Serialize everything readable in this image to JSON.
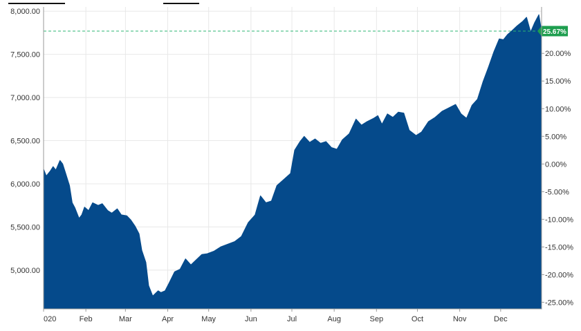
{
  "chart_data": {
    "type": "area",
    "title": "",
    "xlabel": "",
    "ylabel": "",
    "ylim": [
      4550,
      8050
    ],
    "y_right_ylim_pct": [
      -26.2,
      28.4
    ],
    "grid": true,
    "colors": {
      "area": "#054a8b",
      "reference_line": "#2bb673",
      "badge": "#1e9e4f",
      "axis_text": "#333333",
      "grid": "#e8e8e8"
    },
    "y_ticks": [
      {
        "value": 5000,
        "label": "5,000.00"
      },
      {
        "value": 5500,
        "label": "5,500.00"
      },
      {
        "value": 6000,
        "label": "6,000.00"
      },
      {
        "value": 6500,
        "label": "6,500.00"
      },
      {
        "value": 7000,
        "label": "7,000.00"
      },
      {
        "value": 7500,
        "label": "7,500.00"
      },
      {
        "value": 8000,
        "label": "8,000.00"
      }
    ],
    "y_right_ticks": [
      {
        "pct": -25,
        "label": "-25.00%"
      },
      {
        "pct": -20,
        "label": "-20.00%"
      },
      {
        "pct": -15,
        "label": "-15.00%"
      },
      {
        "pct": -10,
        "label": "-10.00%"
      },
      {
        "pct": -5,
        "label": "-5.00%"
      },
      {
        "pct": 0,
        "label": "0.00%"
      },
      {
        "pct": 5,
        "label": "5.00%"
      },
      {
        "pct": 10,
        "label": "10.00%"
      },
      {
        "pct": 15,
        "label": "15.00%"
      },
      {
        "pct": 20,
        "label": "20.00%"
      }
    ],
    "x_ticks": [
      {
        "day": 0,
        "label": "020"
      },
      {
        "day": 31,
        "label": "Feb"
      },
      {
        "day": 60,
        "label": "Mar"
      },
      {
        "day": 91,
        "label": "Apr"
      },
      {
        "day": 121,
        "label": "May"
      },
      {
        "day": 152,
        "label": "Jun"
      },
      {
        "day": 182,
        "label": "Jul"
      },
      {
        "day": 213,
        "label": "Aug"
      },
      {
        "day": 244,
        "label": "Sep"
      },
      {
        "day": 274,
        "label": "Oct"
      },
      {
        "day": 305,
        "label": "Nov"
      },
      {
        "day": 335,
        "label": "Dec"
      }
    ],
    "reference_line": {
      "value": 7770,
      "badge_label": "25.67%"
    },
    "series": [
      {
        "x": [
          "2020-01-01",
          "2020-01-03",
          "2020-01-06",
          "2020-01-08",
          "2020-01-10",
          "2020-01-13",
          "2020-01-15",
          "2020-01-17",
          "2020-01-20",
          "2020-01-22",
          "2020-01-24",
          "2020-01-27",
          "2020-01-29",
          "2020-01-31",
          "2020-02-03",
          "2020-02-06",
          "2020-02-10",
          "2020-02-13",
          "2020-02-17",
          "2020-02-20",
          "2020-02-24",
          "2020-02-27",
          "2020-03-02",
          "2020-03-05",
          "2020-03-08",
          "2020-03-11",
          "2020-03-13",
          "2020-03-16",
          "2020-03-18",
          "2020-03-21",
          "2020-03-23",
          "2020-03-25",
          "2020-03-27",
          "2020-03-30",
          "2020-04-02",
          "2020-04-06",
          "2020-04-10",
          "2020-04-14",
          "2020-04-18",
          "2020-04-22",
          "2020-04-26",
          "2020-04-30",
          "2020-05-05",
          "2020-05-10",
          "2020-05-15",
          "2020-05-20",
          "2020-05-25",
          "2020-05-30",
          "2020-06-04",
          "2020-06-08",
          "2020-06-12",
          "2020-06-16",
          "2020-06-20",
          "2020-06-25",
          "2020-06-30",
          "2020-07-03",
          "2020-07-07",
          "2020-07-10",
          "2020-07-14",
          "2020-07-18",
          "2020-07-22",
          "2020-07-26",
          "2020-07-30",
          "2020-08-03",
          "2020-08-07",
          "2020-08-12",
          "2020-08-17",
          "2020-08-21",
          "2020-08-25",
          "2020-08-30",
          "2020-09-02",
          "2020-09-05",
          "2020-09-09",
          "2020-09-13",
          "2020-09-17",
          "2020-09-21",
          "2020-09-25",
          "2020-09-30",
          "2020-10-04",
          "2020-10-09",
          "2020-10-14",
          "2020-10-19",
          "2020-10-24",
          "2020-10-29",
          "2020-11-02",
          "2020-11-06",
          "2020-11-10",
          "2020-11-14",
          "2020-11-18",
          "2020-11-22",
          "2020-11-26",
          "2020-11-30",
          "2020-12-03",
          "2020-12-06",
          "2020-12-09",
          "2020-12-13",
          "2020-12-17",
          "2020-12-20",
          "2020-12-23",
          "2020-12-26",
          "2020-12-29",
          "2020-12-31"
        ],
        "values": [
          6170,
          6090,
          6150,
          6200,
          6160,
          6270,
          6230,
          6130,
          5980,
          5780,
          5720,
          5600,
          5640,
          5730,
          5690,
          5780,
          5750,
          5770,
          5690,
          5660,
          5710,
          5640,
          5630,
          5580,
          5510,
          5420,
          5230,
          5090,
          4820,
          4700,
          4730,
          4760,
          4740,
          4760,
          4850,
          4980,
          5010,
          5130,
          5060,
          5120,
          5180,
          5190,
          5220,
          5270,
          5300,
          5330,
          5390,
          5550,
          5640,
          5860,
          5780,
          5800,
          5980,
          6050,
          6120,
          6390,
          6490,
          6550,
          6480,
          6520,
          6470,
          6490,
          6420,
          6400,
          6510,
          6580,
          6750,
          6680,
          6720,
          6760,
          6790,
          6690,
          6810,
          6770,
          6830,
          6820,
          6620,
          6560,
          6600,
          6720,
          6770,
          6840,
          6880,
          6920,
          6810,
          6760,
          6910,
          6980,
          7180,
          7350,
          7530,
          7680,
          7670,
          7730,
          7770,
          7830,
          7880,
          7930,
          7760,
          7870,
          7960,
          7770
        ]
      }
    ]
  }
}
